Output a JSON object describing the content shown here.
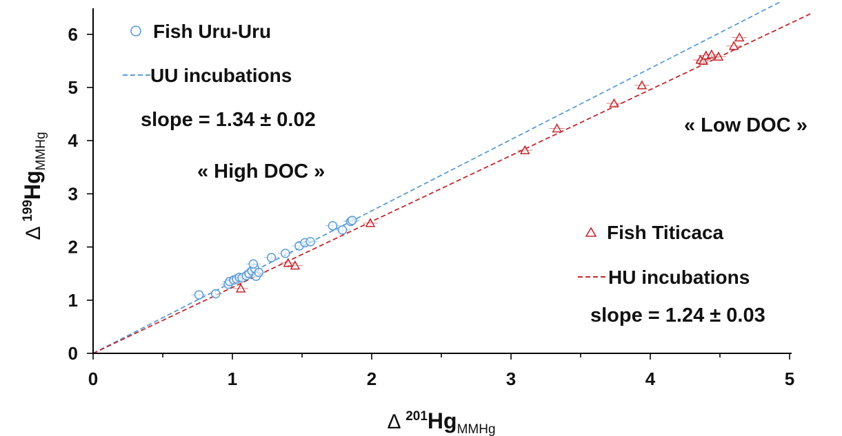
{
  "chart_data": {
    "type": "scatter",
    "xlabel": {
      "prefix": "Δ ",
      "sup": "201",
      "main": "Hg",
      "sub": "MMHg"
    },
    "ylabel": {
      "prefix": "Δ ",
      "sup": "199",
      "main": "Hg",
      "sub": "MMHg"
    },
    "xlim": [
      0,
      5
    ],
    "ylim": [
      0,
      6.5
    ],
    "xticks": [
      0,
      1,
      2,
      3,
      4,
      5
    ],
    "yticks": [
      0,
      1,
      2,
      3,
      4,
      5,
      6
    ],
    "grid": false,
    "series": [
      {
        "name": "Fish Uru-Uru",
        "marker": "circle",
        "color": "#5b9bd5",
        "points": [
          [
            0.76,
            1.1
          ],
          [
            0.88,
            1.12
          ],
          [
            0.97,
            1.3
          ],
          [
            0.98,
            1.35
          ],
          [
            1.01,
            1.38
          ],
          [
            1.03,
            1.4
          ],
          [
            1.05,
            1.43
          ],
          [
            1.07,
            1.42
          ],
          [
            1.1,
            1.46
          ],
          [
            1.12,
            1.5
          ],
          [
            1.14,
            1.55
          ],
          [
            1.16,
            1.6
          ],
          [
            1.15,
            1.68
          ],
          [
            1.17,
            1.45
          ],
          [
            1.19,
            1.52
          ],
          [
            1.28,
            1.8
          ],
          [
            1.38,
            1.88
          ],
          [
            1.48,
            2.02
          ],
          [
            1.52,
            2.08
          ],
          [
            1.56,
            2.1
          ],
          [
            1.72,
            2.4
          ],
          [
            1.79,
            2.32
          ],
          [
            1.85,
            2.48
          ],
          [
            1.86,
            2.5
          ]
        ]
      },
      {
        "name": "Fish Titicaca",
        "marker": "triangle",
        "color": "#c0272d",
        "points": [
          [
            1.06,
            1.22
          ],
          [
            1.4,
            1.7
          ],
          [
            1.45,
            1.65
          ],
          [
            1.99,
            2.45
          ],
          [
            3.1,
            3.82
          ],
          [
            3.33,
            4.23
          ],
          [
            3.74,
            4.7
          ],
          [
            3.94,
            5.04
          ],
          [
            4.36,
            5.52
          ],
          [
            4.38,
            5.5
          ],
          [
            4.4,
            5.6
          ],
          [
            4.44,
            5.62
          ],
          [
            4.49,
            5.58
          ],
          [
            4.6,
            5.78
          ],
          [
            4.64,
            5.94
          ]
        ]
      }
    ],
    "fits": [
      {
        "name": "UU incubations",
        "color": "#5b9bd5",
        "slope": 1.34,
        "slope_label": "slope = 1.34 ± 0.02"
      },
      {
        "name": "HU incubations",
        "color": "#c0272d",
        "slope": 1.24,
        "slope_label": "slope = 1.24 ± 0.03"
      }
    ],
    "annotations": [
      "« High DOC »",
      "« Low DOC »"
    ]
  }
}
